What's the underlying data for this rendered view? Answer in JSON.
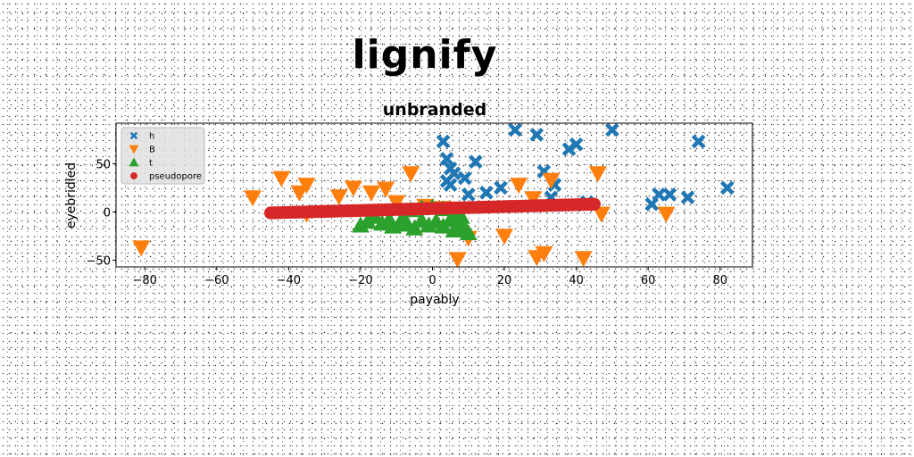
{
  "suptitle": "lignify",
  "chart_data": {
    "type": "scatter",
    "title": "unbranded",
    "xlabel": "payably",
    "ylabel": "eyebridled",
    "xlim": [
      -88,
      89
    ],
    "ylim": [
      -57,
      92
    ],
    "xticks": [
      -80,
      -60,
      -40,
      -20,
      0,
      20,
      40,
      60,
      80
    ],
    "yticks": [
      -50,
      0,
      50
    ],
    "legend_position": "upper-left",
    "grid": false,
    "series": [
      {
        "name": "h",
        "marker": "x",
        "color": "#1f77b4",
        "points": [
          [
            3,
            73
          ],
          [
            4,
            55
          ],
          [
            5,
            45
          ],
          [
            4,
            32
          ],
          [
            6,
            40
          ],
          [
            9,
            35
          ],
          [
            12,
            52
          ],
          [
            10,
            18
          ],
          [
            5,
            28
          ],
          [
            15,
            20
          ],
          [
            19,
            25
          ],
          [
            23,
            85
          ],
          [
            29,
            80
          ],
          [
            31,
            42
          ],
          [
            34,
            28
          ],
          [
            33,
            15
          ],
          [
            38,
            65
          ],
          [
            40,
            70
          ],
          [
            43,
            10
          ],
          [
            50,
            85
          ],
          [
            61,
            8
          ],
          [
            63,
            18
          ],
          [
            66,
            18
          ],
          [
            71,
            15
          ],
          [
            74,
            73
          ],
          [
            82,
            25
          ]
        ]
      },
      {
        "name": "B",
        "marker": "triangle-down",
        "color": "#ff7f0e",
        "points": [
          [
            -81,
            -37
          ],
          [
            -50,
            15
          ],
          [
            -42,
            35
          ],
          [
            -37,
            20
          ],
          [
            -35,
            28
          ],
          [
            -26,
            16
          ],
          [
            -22,
            25
          ],
          [
            -17,
            20
          ],
          [
            -13,
            24
          ],
          [
            -6,
            40
          ],
          [
            -2,
            6
          ],
          [
            3,
            4
          ],
          [
            7,
            -49
          ],
          [
            10,
            -27
          ],
          [
            20,
            -25
          ],
          [
            24,
            28
          ],
          [
            28,
            14
          ],
          [
            29,
            -47
          ],
          [
            31,
            -43
          ],
          [
            33,
            33
          ],
          [
            42,
            -48
          ],
          [
            46,
            40
          ],
          [
            47,
            -2
          ],
          [
            65,
            -2
          ],
          [
            -35,
            -2
          ],
          [
            -10,
            10
          ]
        ]
      },
      {
        "name": "t",
        "marker": "triangle-up",
        "color": "#2ca02c",
        "points": [
          [
            -20,
            -14
          ],
          [
            -18,
            -10
          ],
          [
            -16,
            -5
          ],
          [
            -14,
            -12
          ],
          [
            -12,
            -8
          ],
          [
            -11,
            -15
          ],
          [
            -9,
            -11
          ],
          [
            -8,
            -6
          ],
          [
            -7,
            -13
          ],
          [
            -5,
            -17
          ],
          [
            -3,
            -9
          ],
          [
            -1,
            -14
          ],
          [
            1,
            -10
          ],
          [
            3,
            -15
          ],
          [
            5,
            -8
          ],
          [
            6,
            -19
          ],
          [
            8,
            -12
          ],
          [
            9,
            -17
          ],
          [
            10,
            -22
          ],
          [
            -6,
            2
          ],
          [
            -3,
            4
          ],
          [
            0,
            5
          ],
          [
            3,
            3
          ],
          [
            6,
            -3
          ],
          [
            8,
            -5
          ]
        ]
      },
      {
        "name": "pseudopore",
        "marker": "circle",
        "color": "#d62728",
        "x_range": [
          -45,
          45
        ],
        "y_range": [
          -1,
          8
        ],
        "count": 91
      }
    ]
  }
}
